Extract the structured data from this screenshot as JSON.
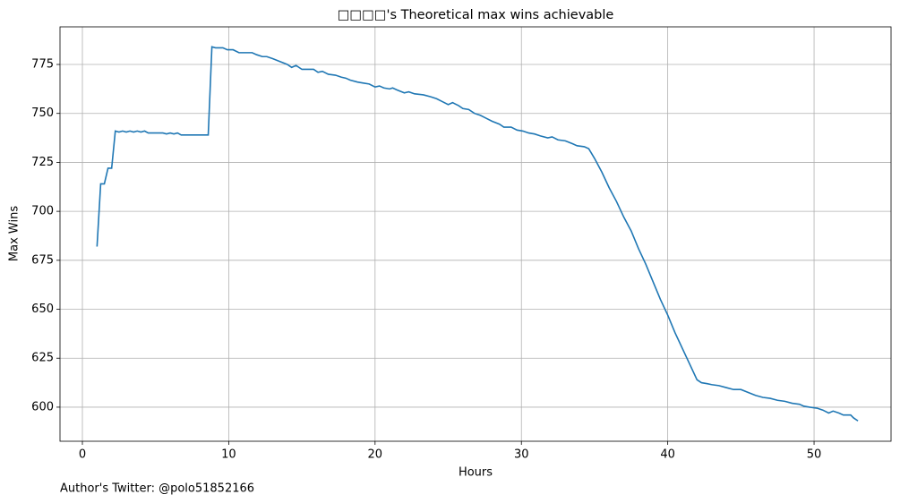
{
  "chart_data": {
    "type": "line",
    "title": "□□□□'s Theoretical max wins achievable",
    "xlabel": "Hours",
    "ylabel": "Max Wins",
    "annotation": "Author's Twitter: @polo51852166",
    "color": "#1f77b4",
    "grid": true,
    "xlim": [
      -1.53,
      55.26
    ],
    "ylim": [
      582.6,
      794.2
    ],
    "xticks": [
      0,
      10,
      20,
      30,
      40,
      50
    ],
    "yticks": [
      600,
      625,
      650,
      675,
      700,
      725,
      750,
      775
    ],
    "x": [
      1.0,
      1.25,
      1.5,
      1.75,
      2.0,
      2.25,
      2.5,
      2.75,
      3,
      3.25,
      3.5,
      3.75,
      4,
      4.25,
      4.5,
      5.5,
      5.75,
      6,
      6.25,
      6.5,
      6.75,
      8.6,
      8.85,
      9.1,
      9.6,
      9.9,
      10.3,
      10.7,
      11.6,
      11.9,
      12.3,
      12.6,
      13.0,
      13.5,
      14.0,
      14.3,
      14.6,
      15.0,
      15.8,
      16.1,
      16.4,
      16.8,
      17.3,
      17.7,
      18.0,
      18.3,
      18.8,
      19.2,
      19.6,
      20.0,
      20.3,
      20.6,
      21.0,
      21.2,
      21.5,
      22.0,
      22.3,
      22.7,
      23.3,
      23.8,
      24.2,
      24.6,
      25.0,
      25.3,
      25.7,
      26.0,
      26.4,
      26.8,
      27.2,
      27.6,
      28.0,
      28.5,
      28.8,
      29.3,
      29.7,
      30.1,
      30.5,
      30.9,
      31.3,
      31.8,
      32.1,
      32.5,
      33.0,
      33.5,
      33.8,
      34.3,
      34.6,
      35.0,
      35.5,
      36.0,
      36.5,
      37.0,
      37.5,
      38.0,
      38.5,
      39.0,
      39.5,
      40.0,
      40.5,
      41.0,
      41.5,
      42.0,
      42.3,
      42.7,
      43.0,
      43.5,
      44.0,
      44.5,
      45.0,
      45.5,
      46.0,
      46.5,
      47.0,
      47.5,
      48.0,
      48.5,
      49.0,
      49.3,
      49.7,
      50.2,
      50.6,
      51.0,
      51.3,
      51.7,
      52.0,
      52.5,
      52.7,
      53.0
    ],
    "values": [
      682,
      714,
      714,
      722,
      722,
      741,
      740.5,
      741,
      740.5,
      741,
      740.5,
      741,
      740.5,
      741,
      740,
      740,
      739.5,
      740,
      739.5,
      740,
      739,
      739,
      784,
      783.5,
      783.5,
      782.5,
      782.5,
      781,
      781,
      780,
      779,
      779,
      778,
      776.5,
      775,
      773.5,
      774.5,
      772.5,
      772.5,
      771,
      771.5,
      770,
      769.5,
      768.5,
      768,
      767,
      766,
      765.5,
      765,
      763.5,
      764,
      763,
      762.5,
      763,
      762,
      760.5,
      761,
      760,
      759.5,
      758.5,
      757.5,
      756,
      754.5,
      755.5,
      754,
      752.5,
      752,
      750,
      749,
      747.5,
      746,
      744.5,
      743,
      743,
      741.5,
      741,
      740,
      739.5,
      738.5,
      737.5,
      738,
      736.5,
      736,
      734.5,
      733.5,
      733,
      732,
      727,
      720,
      712,
      705,
      697,
      690,
      681,
      673,
      664,
      655,
      647,
      638,
      630,
      622,
      614,
      612.5,
      612,
      611.5,
      611,
      610,
      609,
      609,
      607.5,
      606,
      605,
      604.5,
      603.5,
      603,
      602,
      601.5,
      600.5,
      600,
      599.5,
      598.5,
      597,
      598,
      597,
      596,
      596,
      594.5,
      593
    ]
  }
}
